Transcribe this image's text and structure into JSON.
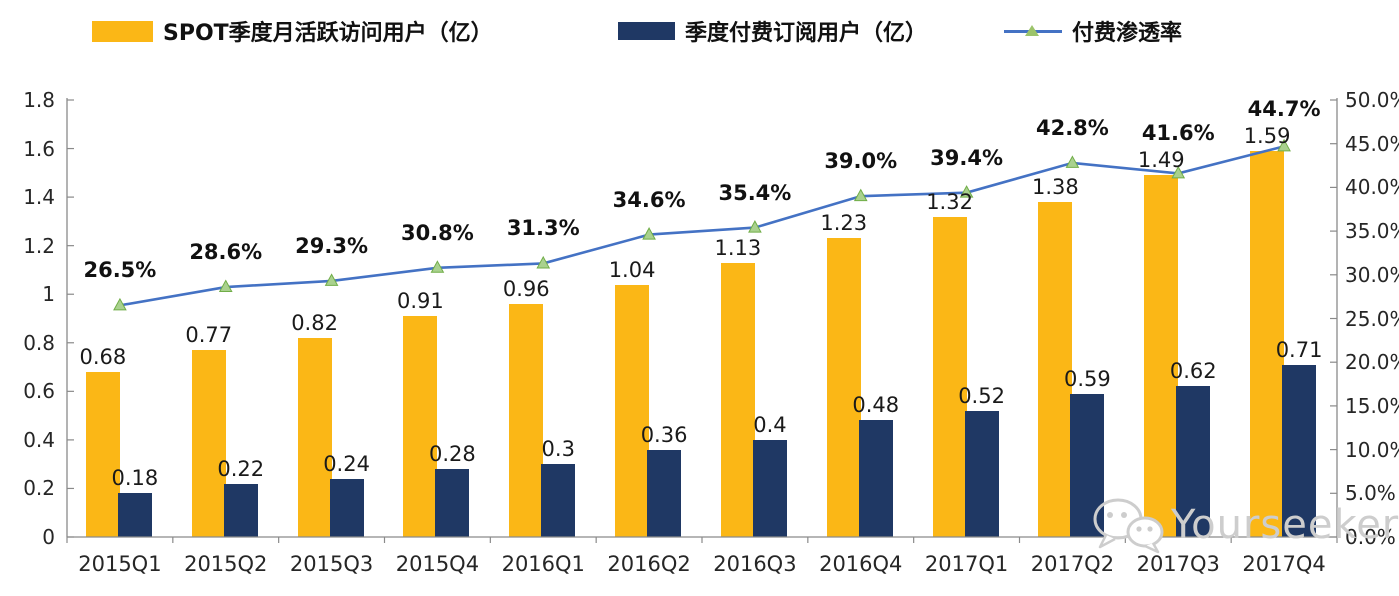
{
  "legend": {
    "items": [
      {
        "label": "SPOT季度月活跃访问用户（亿）",
        "swatch": "bar",
        "color": "#FBB716"
      },
      {
        "label": "季度付费订阅用户（亿）",
        "swatch": "bar",
        "color": "#1F3864"
      },
      {
        "label": "付费渗透率",
        "swatch": "line-with-triangle-marker",
        "color": "#4472C4",
        "marker_color": "#9CC46B"
      }
    ]
  },
  "chart_data": {
    "type": "combo (bar + line)",
    "categories": [
      "2015Q1",
      "2015Q2",
      "2015Q3",
      "2015Q4",
      "2016Q1",
      "2016Q2",
      "2016Q3",
      "2016Q4",
      "2017Q1",
      "2017Q2",
      "2017Q3",
      "2017Q4"
    ],
    "series": [
      {
        "name": "SPOT季度月活跃访问用户（亿）",
        "type": "bar",
        "axis": "left",
        "color": "#FBB716",
        "values": [
          0.68,
          0.77,
          0.82,
          0.91,
          0.96,
          1.04,
          1.13,
          1.23,
          1.32,
          1.38,
          1.49,
          1.59
        ],
        "labels": [
          "0.68",
          "0.77",
          "0.82",
          "0.91",
          "0.96",
          "1.04",
          "1.13",
          "1.23",
          "1.32",
          "1.38",
          "1.49",
          "1.59"
        ]
      },
      {
        "name": "季度付费订阅用户（亿）",
        "type": "bar",
        "axis": "left",
        "color": "#1F3864",
        "values": [
          0.18,
          0.22,
          0.24,
          0.28,
          0.3,
          0.36,
          0.4,
          0.48,
          0.52,
          0.59,
          0.62,
          0.71
        ],
        "labels": [
          "0.18",
          "0.22",
          "0.24",
          "0.28",
          "0.3",
          "0.36",
          "0.4",
          "0.48",
          "0.52",
          "0.59",
          "0.62",
          "0.71"
        ]
      },
      {
        "name": "付费渗透率",
        "type": "line",
        "axis": "right",
        "color": "#4472C4",
        "marker": "triangle",
        "marker_fill": "#A9D18E",
        "marker_stroke": "#70AD47",
        "values": [
          26.5,
          28.6,
          29.3,
          30.8,
          31.3,
          34.6,
          35.4,
          39.0,
          39.4,
          42.8,
          41.6,
          44.7
        ],
        "labels": [
          "26.5%",
          "28.6%",
          "29.3%",
          "30.8%",
          "31.3%",
          "34.6%",
          "35.4%",
          "39.0%",
          "39.4%",
          "42.8%",
          "41.6%",
          "44.7%"
        ]
      }
    ],
    "left_axis": {
      "min": 0,
      "max": 1.8,
      "step": 0.2,
      "tick_labels": [
        "1.8",
        "1.6",
        "1.4",
        "1.2",
        "1",
        "0.8",
        "0.6",
        "0.4",
        "0.2",
        "0"
      ]
    },
    "right_axis": {
      "min": 0,
      "max": 50,
      "step": 5,
      "tick_labels": [
        "50.0%",
        "45.0%",
        "40.0%",
        "35.0%",
        "30.0%",
        "25.0%",
        "20.0%",
        "15.0%",
        "10.0%",
        "5.0%",
        "0.0%"
      ]
    },
    "grid": false,
    "legend_position": "top",
    "title": ""
  },
  "watermark": {
    "text": "Yourseeker",
    "icon": "wechat-icon"
  }
}
